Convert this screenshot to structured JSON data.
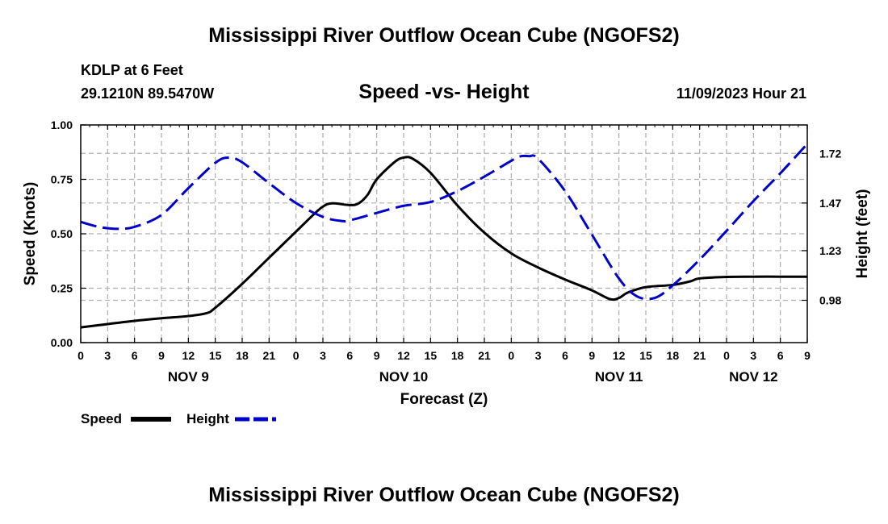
{
  "header": {
    "title": "Mississippi River Outflow Ocean Cube (NGOFS2)",
    "station": "KDLP at 6 Feet",
    "coords": "29.1210N  89.5470W",
    "subtitle": "Speed -vs- Height",
    "timestamp": "11/09/2023 Hour 21"
  },
  "footer": {
    "title": "Mississippi River Outflow Ocean Cube (NGOFS2)"
  },
  "legend": {
    "speed_label": "Speed",
    "height_label": "Height"
  },
  "colors": {
    "speed": "#000000",
    "height": "#0000cc",
    "grid": "#b0b0b0"
  },
  "chart_data": {
    "type": "line",
    "title": "Speed -vs- Height",
    "xlabel": "Forecast (Z)",
    "ylabel": "Speed (Knots)",
    "y2label": "Height (feet)",
    "xlim": [
      0,
      81
    ],
    "ylim": [
      0,
      1.0
    ],
    "y2lim": [
      0.7667,
      1.8633
    ],
    "x_ticks": [
      0,
      3,
      6,
      9,
      12,
      15,
      18,
      21,
      24,
      27,
      30,
      33,
      36,
      39,
      42,
      45,
      48,
      51,
      54,
      57,
      60,
      63,
      66,
      69,
      72,
      75,
      78,
      81
    ],
    "x_tick_labels": [
      "0",
      "3",
      "6",
      "9",
      "12",
      "15",
      "18",
      "21",
      "0",
      "3",
      "6",
      "9",
      "12",
      "15",
      "18",
      "21",
      "0",
      "3",
      "6",
      "9",
      "12",
      "15",
      "18",
      "21",
      "0",
      "3",
      "6",
      "9"
    ],
    "y_ticks": [
      0,
      0.25,
      0.5,
      0.75,
      1.0
    ],
    "y_tick_labels": [
      "0.00",
      "0.25",
      "0.50",
      "0.75",
      "1.00"
    ],
    "y2_ticks": [
      0.98,
      1.23,
      1.47,
      1.72
    ],
    "y2_tick_labels": [
      "0.98",
      "1.23",
      "1.47",
      "1.72"
    ],
    "day_labels": [
      {
        "x": 12,
        "label": "NOV 9"
      },
      {
        "x": 36,
        "label": "NOV 10"
      },
      {
        "x": 60,
        "label": "NOV 11"
      },
      {
        "x": 75,
        "label": "NOV 12"
      }
    ],
    "series": [
      {
        "name": "Speed",
        "axis": "left",
        "x": [
          0,
          3,
          6,
          9,
          12,
          14,
          15,
          18,
          21,
          24,
          26,
          27,
          28,
          30,
          31,
          32,
          33,
          35,
          36,
          37,
          39,
          42,
          45,
          48,
          51,
          54,
          57,
          59,
          60,
          61,
          63,
          66,
          68,
          69,
          72,
          75,
          78,
          81
        ],
        "values": [
          0.07,
          0.085,
          0.1,
          0.112,
          0.122,
          0.135,
          0.16,
          0.27,
          0.39,
          0.51,
          0.59,
          0.625,
          0.64,
          0.632,
          0.64,
          0.68,
          0.75,
          0.83,
          0.85,
          0.845,
          0.78,
          0.63,
          0.505,
          0.41,
          0.345,
          0.29,
          0.24,
          0.2,
          0.205,
          0.23,
          0.255,
          0.265,
          0.282,
          0.295,
          0.302,
          0.303,
          0.303,
          0.303
        ]
      },
      {
        "name": "Height",
        "axis": "right",
        "x": [
          0,
          2,
          4,
          6,
          9,
          12,
          15,
          16.5,
          18,
          21,
          24,
          27,
          29,
          30,
          33,
          36,
          39,
          42,
          45,
          48,
          49,
          50,
          51,
          54,
          57,
          60,
          62,
          64,
          66,
          69,
          72,
          75,
          78,
          81
        ],
        "values": [
          1.375,
          1.35,
          1.34,
          1.35,
          1.41,
          1.545,
          1.672,
          1.699,
          1.675,
          1.57,
          1.47,
          1.4,
          1.38,
          1.383,
          1.42,
          1.456,
          1.475,
          1.53,
          1.603,
          1.683,
          1.705,
          1.706,
          1.693,
          1.53,
          1.31,
          1.09,
          1.0,
          0.992,
          1.055,
          1.185,
          1.33,
          1.48,
          1.62,
          1.768
        ]
      }
    ]
  }
}
